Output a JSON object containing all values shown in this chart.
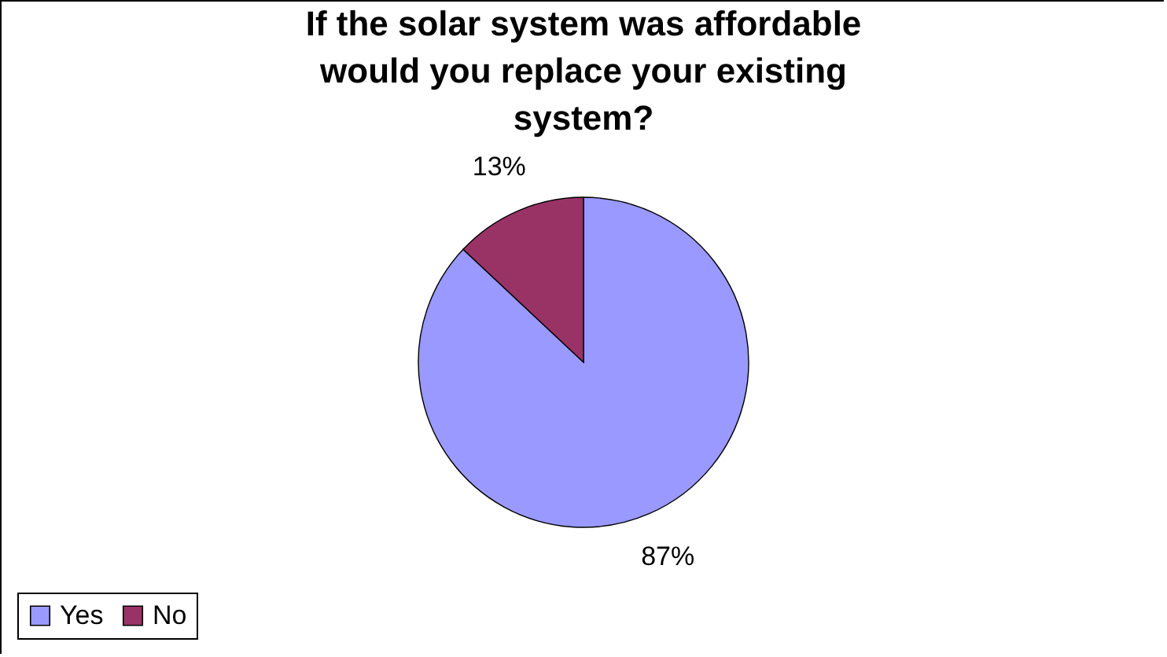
{
  "chart_data": {
    "type": "pie",
    "title": "If the solar system was affordable would you replace your existing system?",
    "categories": [
      "Yes",
      "No"
    ],
    "values": [
      87,
      13
    ],
    "colors": [
      "#9999ff",
      "#993366"
    ],
    "value_labels": [
      "87%",
      "13%"
    ],
    "legend": "bottom"
  }
}
